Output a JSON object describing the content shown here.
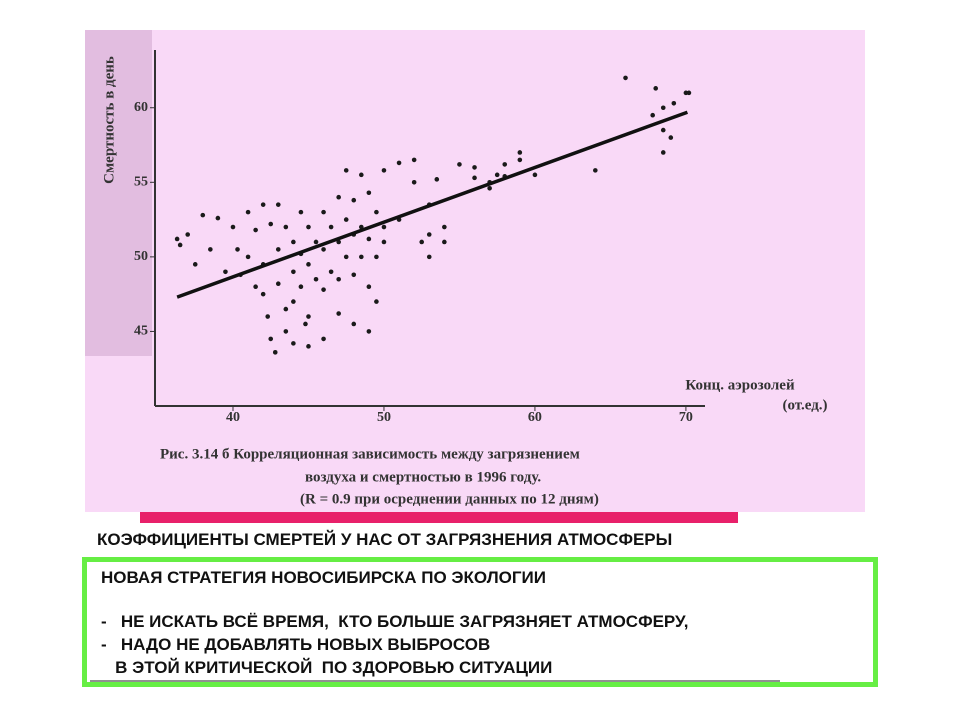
{
  "chart_data": {
    "type": "scatter",
    "y_label": "Смертность в день",
    "x_label": [
      "Конц. аэрозолей",
      "(от.ед.)"
    ],
    "caption": [
      "Рис. 3.14 б Корреляционная зависимость между загрязнением",
      "воздуха и смертностью в 1996 году.",
      "(R = 0.9 при осреднении данных по 12 дням)"
    ],
    "x": [
      36.3,
      36.5,
      37,
      37.5,
      38,
      38.5,
      39,
      39.5,
      40,
      40.3,
      40.5,
      41,
      41,
      41.5,
      41.5,
      42,
      42,
      42,
      42.3,
      42.5,
      42.5,
      42.8,
      43,
      43,
      43,
      43.5,
      43.5,
      43.5,
      44,
      44,
      44,
      44,
      44.5,
      44.5,
      44.5,
      44.8,
      45,
      45,
      45,
      45,
      45.5,
      45.5,
      46,
      46,
      46,
      46,
      46.5,
      46.5,
      47,
      47,
      47,
      47,
      47.5,
      47.5,
      47.5,
      48,
      48,
      48,
      48,
      48.5,
      48.5,
      48.5,
      49,
      49,
      49,
      49,
      49.5,
      49.5,
      49.5,
      50,
      50,
      50,
      51,
      51,
      52,
      52,
      52.5,
      53,
      53,
      53,
      53.5,
      54,
      54,
      55,
      56,
      56,
      57,
      57,
      57.5,
      58,
      58,
      59,
      59,
      60,
      64,
      66,
      68,
      67.8,
      68.5,
      68.5,
      68.5,
      69,
      69.2,
      70,
      70.2
    ],
    "y": [
      51.2,
      50.8,
      51.5,
      49.5,
      52.8,
      50.5,
      52.6,
      49,
      52,
      50.5,
      48.8,
      53,
      50,
      48,
      51.8,
      53.5,
      49.5,
      47.5,
      46,
      52.2,
      44.5,
      43.6,
      53.5,
      50.5,
      48.2,
      52,
      46.5,
      45,
      51,
      49,
      47,
      44.2,
      53,
      50.2,
      48,
      45.5,
      52,
      49.5,
      46,
      44,
      51,
      48.5,
      53,
      50.5,
      47.8,
      44.5,
      52,
      49,
      54,
      51,
      48.5,
      46.2,
      55.8,
      52.5,
      50,
      53.8,
      51.5,
      48.8,
      45.5,
      55.5,
      52,
      50,
      54.3,
      51.2,
      48,
      45,
      53,
      50,
      47,
      52,
      51,
      55.8,
      56.3,
      52.5,
      56.5,
      55,
      51,
      53.5,
      51.5,
      50,
      55.2,
      52,
      51,
      56.2,
      56,
      55.3,
      55,
      54.6,
      55.5,
      56.2,
      55.4,
      57,
      56.5,
      55.5,
      55.8,
      62,
      61.3,
      59.5,
      60,
      58.5,
      57,
      58,
      60.3,
      61,
      61
    ],
    "trend_line": {
      "x": [
        36.3,
        70.1
      ],
      "y": [
        47.3,
        59.7
      ]
    },
    "xlim": [
      35,
      71
    ],
    "ylim": [
      40,
      63
    ],
    "xticks": [
      40,
      50,
      60,
      70
    ],
    "yticks": [
      45,
      50,
      55,
      60
    ],
    "color": "#1a1a1a",
    "line_color": "#111111"
  },
  "slide": {
    "headline": "КОЭФФИЦИЕНТЫ СМЕРТЕЙ У НАС ОТ ЗАГРЯЗНЕНИЯ АТМОСФЕРЫ",
    "box": {
      "title": "НОВАЯ СТРАТЕГИЯ НОВОСИБИРСКА ПО ЭКОЛОГИИ",
      "items": [
        "-   НЕ ИСКАТЬ ВСЁ ВРЕМЯ,  КТО БОЛЬШЕ ЗАГРЯЗНЯЕТ АТМОСФЕРУ,",
        "-   НАДО НЕ ДОБАВЛЯТЬ НОВЫХ ВЫБРОСОВ",
        "   В ЭТОЙ КРИТИЧЕСКОЙ  ПО ЗДОРОВЬЮ СИТУАЦИИ"
      ]
    }
  }
}
